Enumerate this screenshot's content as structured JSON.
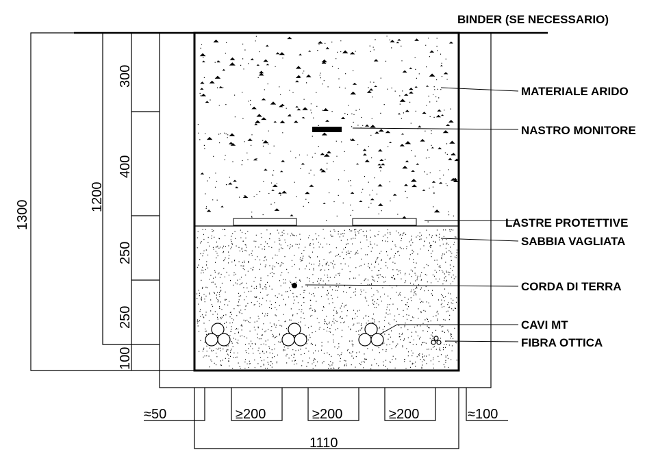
{
  "labels": {
    "binder": "BINDER (SE NECESSARIO)",
    "materiale_arido": "MATERIALE ARIDO",
    "nastro_monitore": "NASTRO MONITORE",
    "lastre_protettive": "LASTRE PROTETTIVE",
    "sabbia_vagliata": "SABBIA VAGLIATA",
    "corda_di_terra": "CORDA DI TERRA",
    "cavi_mt": "CAVI MT",
    "fibra_ottica": "FIBRA OTTICA"
  },
  "vertical_dimensions": {
    "total_depth": "1300",
    "fill_depth": "1200",
    "layer_1": "300",
    "layer_2": "400",
    "layer_3": "250",
    "layer_4": "250",
    "layer_5": "100"
  },
  "horizontal_dimensions": {
    "left_margin": "≈50",
    "spacing_1": "≥200",
    "spacing_2": "≥200",
    "spacing_3": "≥200",
    "right_margin": "≈100",
    "trench_width": "1110"
  },
  "colors": {
    "line": "#000000",
    "background": "#ffffff"
  }
}
